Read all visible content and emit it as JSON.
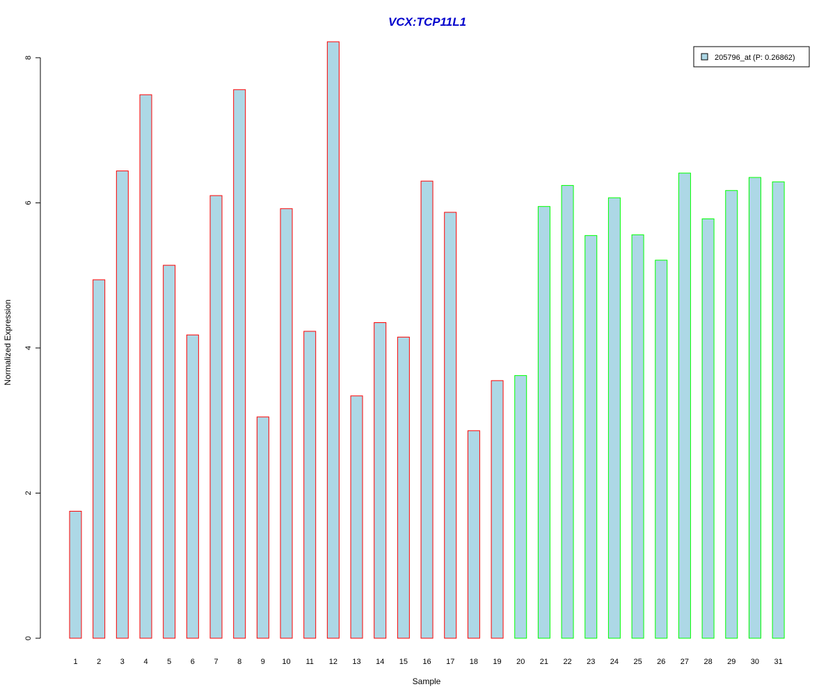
{
  "chart_data": {
    "type": "bar",
    "title": "VCX:TCP11L1",
    "xlabel": "Sample",
    "ylabel": "Normalized Expression",
    "categories": [
      "1",
      "2",
      "3",
      "4",
      "5",
      "6",
      "7",
      "8",
      "9",
      "10",
      "11",
      "12",
      "13",
      "14",
      "15",
      "16",
      "17",
      "18",
      "19",
      "20",
      "21",
      "22",
      "23",
      "24",
      "25",
      "26",
      "27",
      "28",
      "29",
      "30",
      "31"
    ],
    "series": [
      {
        "name": "205796_at (P: 0.26862)",
        "values": [
          1.75,
          4.94,
          6.44,
          7.49,
          5.14,
          4.18,
          6.1,
          7.56,
          3.05,
          5.92,
          4.23,
          8.22,
          3.34,
          4.35,
          4.15,
          6.3,
          5.87,
          2.86,
          3.55,
          3.62,
          5.95,
          6.24,
          5.55,
          6.07,
          5.56,
          5.21,
          6.41,
          5.78,
          6.17,
          6.35,
          6.29
        ]
      }
    ],
    "groups": [
      {
        "range": [
          1,
          19
        ],
        "border_color": "#ff0000"
      },
      {
        "range": [
          20,
          31
        ],
        "border_color": "#00ff00"
      }
    ],
    "fill_color": "#add8e6",
    "title_color": "#0000cc",
    "ylim": [
      0,
      8.22
    ],
    "yticks": [
      0,
      2,
      4,
      6,
      8
    ],
    "grid": false,
    "legend_position": "top-right"
  }
}
